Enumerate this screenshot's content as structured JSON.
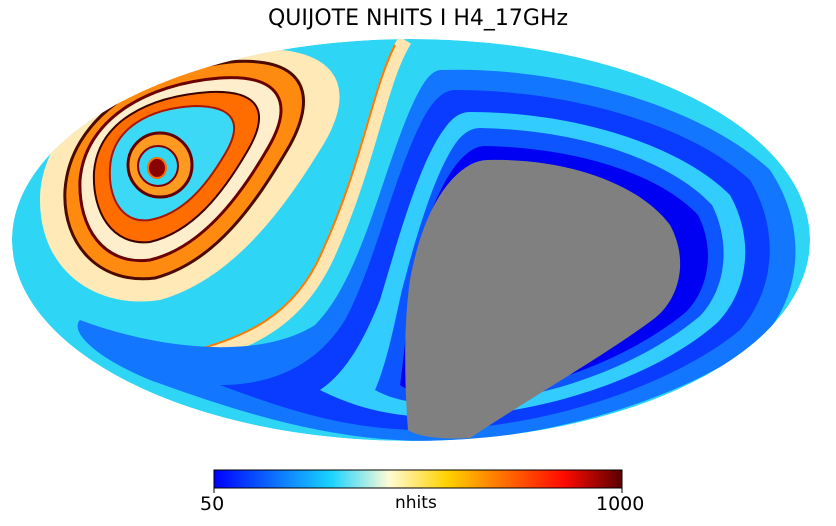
{
  "chart_data": {
    "type": "heatmap",
    "projection": "Mollweide",
    "title": "QUIJOTE NHITS I H4_17GHz",
    "colorbar": {
      "label": "nhits",
      "min": 50,
      "max": 1000,
      "orientation": "horizontal",
      "colormap": [
        "#0000ff",
        "#0b6cff",
        "#19d2ff",
        "#fffbd5",
        "#ffd200",
        "#ff6c00",
        "#ff0b00",
        "#5a0000"
      ]
    },
    "masked_region_color": "#808080",
    "grid": false
  }
}
